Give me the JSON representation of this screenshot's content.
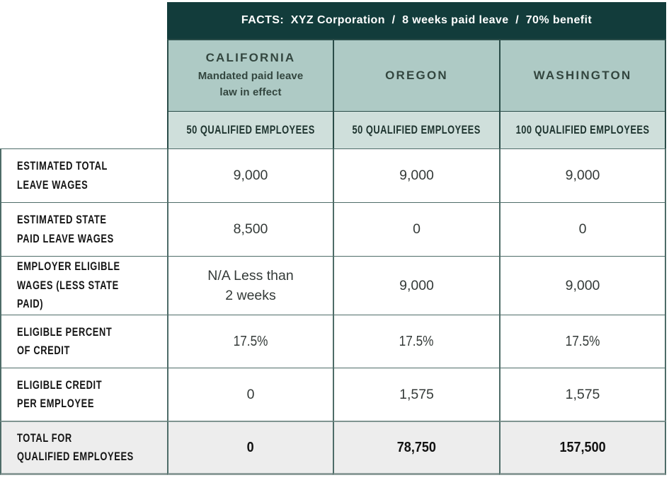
{
  "header": {
    "facts": "FACTS:  XYZ Corporation  /  8 weeks paid leave  /  70% benefit"
  },
  "columns": [
    {
      "name": "CALIFORNIA",
      "subtitle": "Mandated paid leave\nlaw in effect",
      "qualified": "50 QUALIFIED EMPLOYEES"
    },
    {
      "name": "OREGON",
      "subtitle": "",
      "qualified": "50 QUALIFIED EMPLOYEES"
    },
    {
      "name": "WASHINGTON",
      "subtitle": "",
      "qualified": "100 QUALIFIED EMPLOYEES"
    }
  ],
  "rows": [
    {
      "label": "ESTIMATED TOTAL\nLEAVE WAGES",
      "values": [
        "9,000",
        "9,000",
        "9,000"
      ]
    },
    {
      "label": "ESTIMATED STATE\nPAID LEAVE WAGES",
      "values": [
        "8,500",
        "0",
        "0"
      ]
    },
    {
      "label": "EMPLOYER ELIGIBLE\nWAGES (LESS STATE PAID)",
      "values": [
        "N/A Less than\n2 weeks",
        "9,000",
        "9,000"
      ]
    },
    {
      "label": "ELIGIBLE PERCENT\nOF CREDIT",
      "values": [
        "17.5%",
        "17.5%",
        "17.5%"
      ]
    },
    {
      "label": "ELIGIBLE CREDIT\nPER EMPLOYEE",
      "values": [
        "0",
        "1,575",
        "1,575"
      ]
    },
    {
      "label": "TOTAL FOR\nQUALIFIED EMPLOYEES",
      "values": [
        "0",
        "78,750",
        "157,500"
      ]
    }
  ],
  "colors": {
    "facts_bar_bg": "#123c3b",
    "facts_bar_text": "#ffffff",
    "state_header_bg": "#aecac5",
    "qualified_row_bg": "#cfdfdb",
    "total_row_bg": "#ededed",
    "green_border": "#2a4c48",
    "table_border": "#4e6c68",
    "bottom_bar": "#8d9d9a",
    "header_text": "#33463f",
    "label_text": "#141414",
    "value_text": "#343a38"
  },
  "chart_data": {
    "type": "table",
    "title": "FACTS: XYZ Corporation / 8 weeks paid leave / 70% benefit",
    "columns": [
      "CALIFORNIA (Mandated paid leave law in effect)",
      "OREGON",
      "WASHINGTON"
    ],
    "column_subheaders": [
      "50 QUALIFIED EMPLOYEES",
      "50 QUALIFIED EMPLOYEES",
      "100 QUALIFIED EMPLOYEES"
    ],
    "rows": [
      {
        "label": "ESTIMATED TOTAL LEAVE WAGES",
        "values": [
          "9,000",
          "9,000",
          "9,000"
        ]
      },
      {
        "label": "ESTIMATED STATE PAID LEAVE WAGES",
        "values": [
          "8,500",
          "0",
          "0"
        ]
      },
      {
        "label": "EMPLOYER ELIGIBLE WAGES (LESS STATE PAID)",
        "values": [
          "N/A Less than 2 weeks",
          "9,000",
          "9,000"
        ]
      },
      {
        "label": "ELIGIBLE PERCENT OF CREDIT",
        "values": [
          "17.5%",
          "17.5%",
          "17.5%"
        ]
      },
      {
        "label": "ELIGIBLE CREDIT PER EMPLOYEE",
        "values": [
          "0",
          "1,575",
          "1,575"
        ]
      },
      {
        "label": "TOTAL FOR QUALIFIED EMPLOYEES",
        "values": [
          "0",
          "78,750",
          "157,500"
        ]
      }
    ]
  }
}
